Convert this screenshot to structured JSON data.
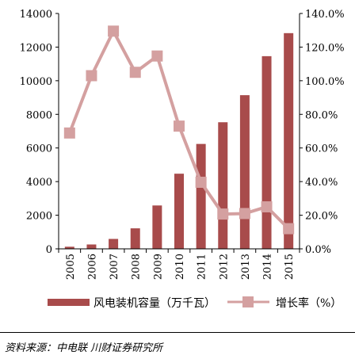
{
  "chart_data": {
    "type": "bar+line",
    "categories": [
      "2005",
      "2006",
      "2007",
      "2008",
      "2009",
      "2010",
      "2011",
      "2012",
      "2013",
      "2014",
      "2015"
    ],
    "series": [
      {
        "name": "风电装机容量（万千瓦）",
        "type": "bar",
        "axis": "left",
        "color": "#A84B4B",
        "values": [
          126,
          260,
          590,
          1220,
          2580,
          4470,
          6240,
          7530,
          9140,
          11460,
          12830
        ]
      },
      {
        "name": "增长率（%）",
        "type": "line",
        "axis": "right",
        "color": "#D4A0A0",
        "values": [
          68.9,
          103.0,
          129.5,
          105.0,
          114.7,
          73.0,
          39.6,
          20.7,
          21.0,
          25.0,
          12.0
        ]
      }
    ],
    "y_left": {
      "min": 0,
      "max": 14000,
      "ticks": [
        "0",
        "2000",
        "4000",
        "6000",
        "8000",
        "10000",
        "12000",
        "14000"
      ]
    },
    "y_right": {
      "min": 0,
      "max": 140,
      "ticks": [
        "0.0%",
        "20.0%",
        "40.0%",
        "60.0%",
        "80.0%",
        "100.0%",
        "120.0%",
        "140.0%"
      ]
    },
    "grid": false,
    "legend_position": "bottom"
  },
  "legend": {
    "bar_label": "风电装机容量（万千瓦）",
    "line_label": "增长率（%）"
  },
  "source": "资料来源：中电联 川财证券研究所"
}
